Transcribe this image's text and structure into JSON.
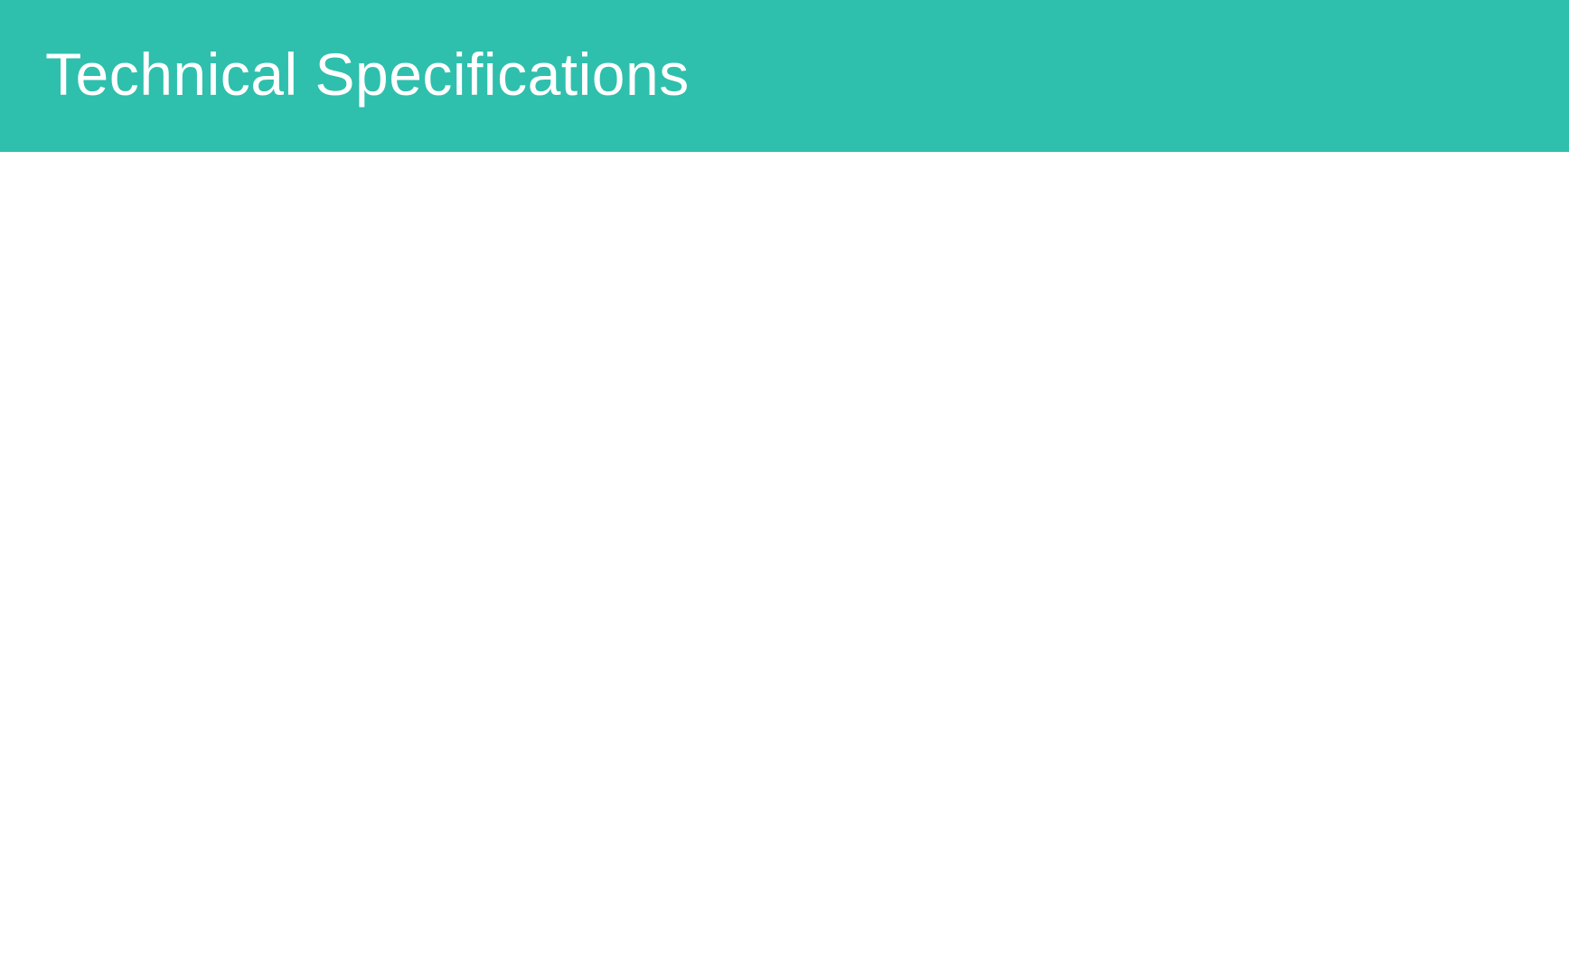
{
  "header": {
    "title": "Technical Specifications",
    "background_color": "#2fbfad",
    "text_color": "#ffffff"
  },
  "content": {
    "background_color": "#ffffff"
  }
}
